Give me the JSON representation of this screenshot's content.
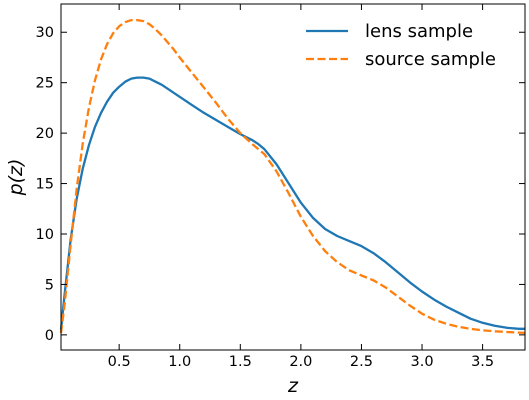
{
  "chart_data": {
    "type": "line",
    "title": "",
    "xlabel": "z",
    "ylabel": "p(z)",
    "xlim": [
      0.02,
      3.85
    ],
    "ylim": [
      -1.5,
      32.8
    ],
    "xticks": [
      "0.5",
      "1.0",
      "1.5",
      "2.0",
      "2.5",
      "3.0",
      "3.5"
    ],
    "yticks": [
      "0",
      "5",
      "10",
      "15",
      "20",
      "25",
      "30"
    ],
    "grid": false,
    "legend_position": "top-right",
    "series": [
      {
        "name": "lens sample",
        "color": "#1f77b4",
        "style": "solid",
        "x": [
          0.02,
          0.05,
          0.1,
          0.15,
          0.2,
          0.25,
          0.3,
          0.35,
          0.4,
          0.45,
          0.5,
          0.55,
          0.6,
          0.65,
          0.7,
          0.75,
          0.8,
          0.85,
          0.9,
          0.95,
          1.0,
          1.1,
          1.2,
          1.3,
          1.4,
          1.5,
          1.6,
          1.65,
          1.7,
          1.8,
          1.9,
          2.0,
          2.1,
          2.2,
          2.3,
          2.4,
          2.5,
          2.6,
          2.7,
          2.8,
          2.9,
          3.0,
          3.1,
          3.2,
          3.3,
          3.4,
          3.5,
          3.6,
          3.7,
          3.8,
          3.85
        ],
        "values": [
          0.5,
          4.0,
          9.5,
          13.5,
          16.5,
          18.8,
          20.6,
          22.0,
          23.1,
          24.0,
          24.6,
          25.1,
          25.4,
          25.5,
          25.5,
          25.4,
          25.1,
          24.8,
          24.4,
          24.0,
          23.6,
          22.8,
          22.0,
          21.3,
          20.6,
          19.9,
          19.3,
          18.9,
          18.4,
          16.9,
          15.0,
          13.1,
          11.6,
          10.5,
          9.8,
          9.3,
          8.8,
          8.1,
          7.2,
          6.2,
          5.2,
          4.3,
          3.5,
          2.8,
          2.2,
          1.6,
          1.2,
          0.9,
          0.7,
          0.6,
          0.6
        ]
      },
      {
        "name": "source sample",
        "color": "#ff7f0e",
        "style": "dashed",
        "x": [
          0.02,
          0.05,
          0.1,
          0.15,
          0.2,
          0.25,
          0.3,
          0.35,
          0.4,
          0.45,
          0.5,
          0.55,
          0.6,
          0.65,
          0.7,
          0.75,
          0.8,
          0.85,
          0.9,
          0.95,
          1.0,
          1.1,
          1.2,
          1.3,
          1.4,
          1.5,
          1.6,
          1.7,
          1.8,
          1.9,
          2.0,
          2.1,
          2.2,
          2.3,
          2.4,
          2.5,
          2.6,
          2.7,
          2.8,
          2.9,
          3.0,
          3.1,
          3.2,
          3.3,
          3.4,
          3.5,
          3.6,
          3.7,
          3.8,
          3.85
        ],
        "values": [
          0.2,
          3.0,
          9.0,
          14.5,
          19.0,
          22.5,
          25.2,
          27.3,
          28.8,
          29.9,
          30.6,
          31.0,
          31.2,
          31.2,
          31.1,
          30.8,
          30.3,
          29.7,
          29.0,
          28.3,
          27.5,
          26.0,
          24.5,
          23.0,
          21.4,
          20.0,
          18.9,
          17.9,
          16.2,
          14.0,
          11.7,
          9.8,
          8.3,
          7.2,
          6.4,
          5.9,
          5.4,
          4.7,
          3.8,
          2.9,
          2.1,
          1.5,
          1.1,
          0.8,
          0.6,
          0.45,
          0.35,
          0.28,
          0.22,
          0.2
        ]
      }
    ]
  }
}
